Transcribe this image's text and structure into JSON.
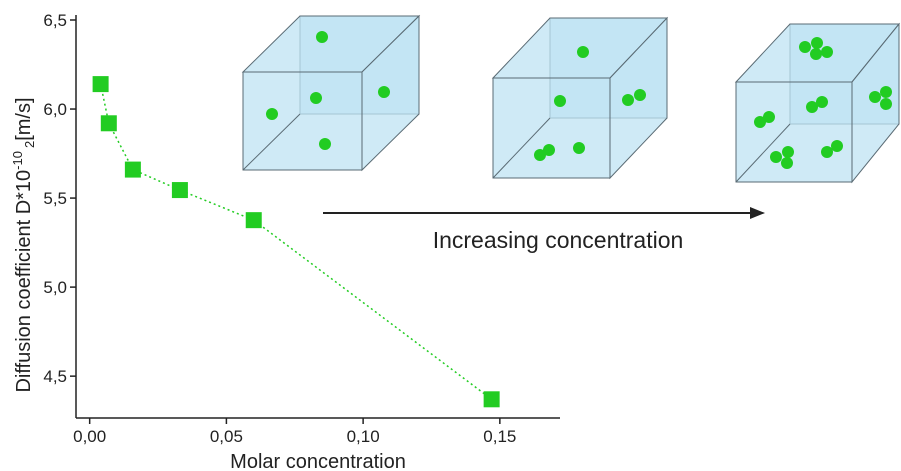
{
  "chart_data": {
    "type": "line",
    "x_label": "Molar concentration",
    "y_label": {
      "text": "Diffusion coefficient D*10",
      "sup": "-10",
      "sub": "2",
      "unit": "[m/s]"
    },
    "annotation": "Increasing concentration",
    "x": [
      0.004,
      0.007,
      0.0158,
      0.033,
      0.06,
      0.147
    ],
    "series": [
      {
        "color": "#22cc22",
        "values": [
          6.14,
          5.92,
          5.66,
          5.545,
          5.376,
          4.37
        ]
      }
    ],
    "xlim": [
      -0.005,
      0.172
    ],
    "ylim": [
      4.265,
      6.5
    ],
    "xticks": [
      {
        "value": 0,
        "label": "0,00"
      },
      {
        "value": 0.05,
        "label": "0,05"
      },
      {
        "value": 0.1,
        "label": "0,10"
      },
      {
        "value": 0.15,
        "label": "0,15"
      }
    ],
    "yticks": [
      {
        "value": 4.5,
        "label": "4,5"
      },
      {
        "value": 5,
        "label": "5,0"
      },
      {
        "value": 5.5,
        "label": "5,5"
      },
      {
        "value": 6,
        "label": "6,0"
      },
      {
        "value": 6.5,
        "label": "6,5"
      }
    ]
  }
}
